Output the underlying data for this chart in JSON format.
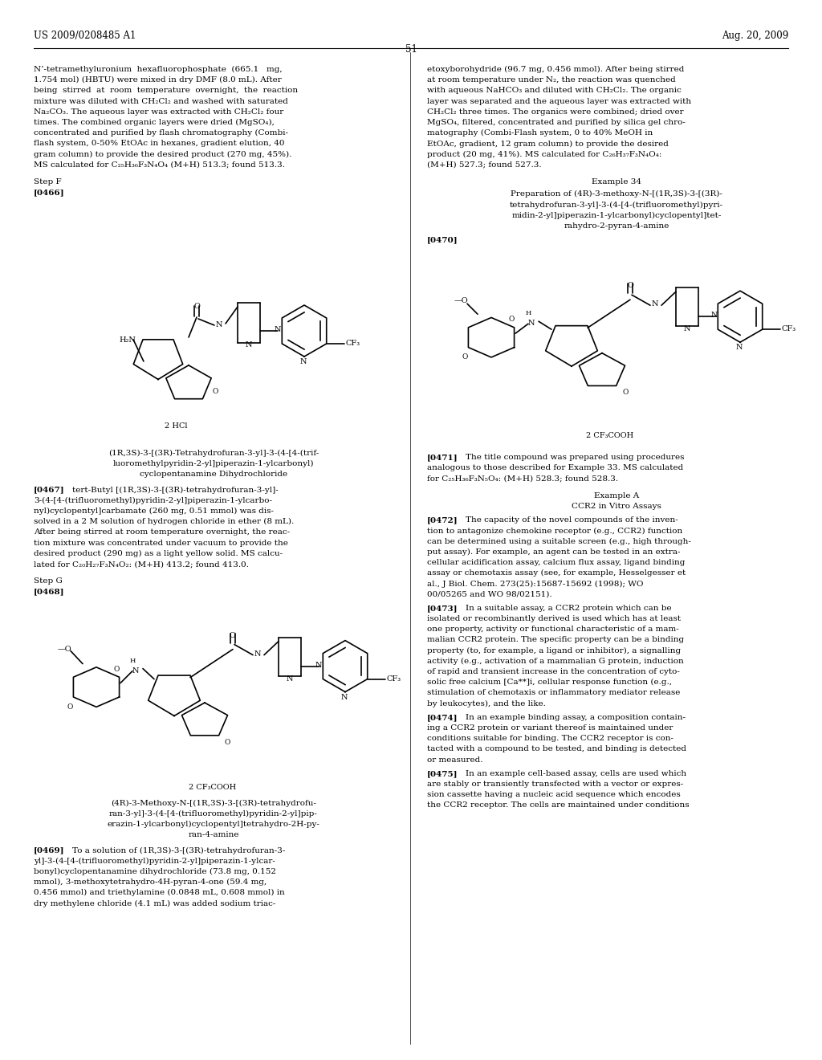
{
  "bg_color": "#ffffff",
  "header_left": "US 2009/0208485 A1",
  "header_right": "Aug. 20, 2009",
  "page_number": "51",
  "font_size_body": 7.5,
  "font_size_header": 8.5,
  "font_size_struct": 7.0
}
